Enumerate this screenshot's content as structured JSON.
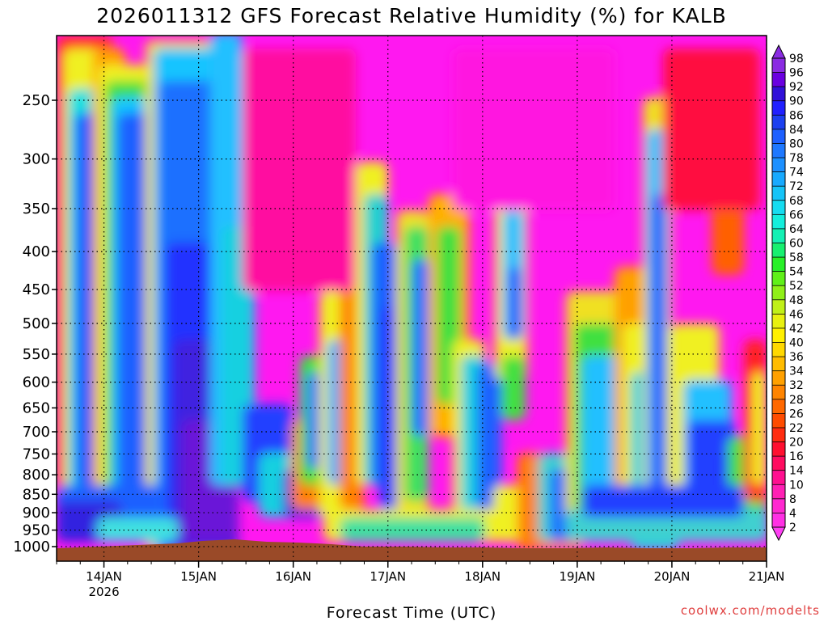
{
  "chart_data": {
    "type": "heatmap",
    "title": "2026011312 GFS Forecast Relative Humidity (%) for KALB",
    "xlabel": "Forecast Time (UTC)",
    "ylabel": "",
    "credit": "coolwx.com/modelts",
    "x_ticks": [
      {
        "label": "14JAN",
        "sub": "2026",
        "day": 14
      },
      {
        "label": "15JAN",
        "sub": "",
        "day": 15
      },
      {
        "label": "16JAN",
        "sub": "",
        "day": 16
      },
      {
        "label": "17JAN",
        "sub": "",
        "day": 17
      },
      {
        "label": "18JAN",
        "sub": "",
        "day": 18
      },
      {
        "label": "19JAN",
        "sub": "",
        "day": 19
      },
      {
        "label": "20JAN",
        "sub": "",
        "day": 20
      },
      {
        "label": "21JAN",
        "sub": "",
        "day": 21
      }
    ],
    "xlim_days": [
      13.5,
      21.0
    ],
    "y_ticks": [
      "250",
      "300",
      "350",
      "400",
      "450",
      "500",
      "550",
      "600",
      "650",
      "700",
      "750",
      "800",
      "850",
      "900",
      "950",
      "1000"
    ],
    "y_scale": "log-pressure",
    "ylim_hpa": [
      200,
      1050
    ],
    "colorbar_labels": [
      "98",
      "96",
      "92",
      "90",
      "86",
      "84",
      "80",
      "78",
      "74",
      "72",
      "68",
      "66",
      "64",
      "60",
      "58",
      "54",
      "52",
      "48",
      "46",
      "42",
      "40",
      "36",
      "34",
      "32",
      "28",
      "26",
      "22",
      "20",
      "16",
      "14",
      "10",
      "8",
      "4",
      "2"
    ],
    "colorbar_colors": [
      "#8a2be2",
      "#6a00e0",
      "#3010d8",
      "#2020ff",
      "#1c40f0",
      "#1e60ff",
      "#1e78ff",
      "#1c90ff",
      "#18aaff",
      "#16c4f8",
      "#16dcf0",
      "#14eedc",
      "#14f0b4",
      "#18f070",
      "#28f028",
      "#60f018",
      "#90f018",
      "#c0f018",
      "#e8f010",
      "#fff000",
      "#ffd800",
      "#ffbc00",
      "#ffa000",
      "#ff8400",
      "#ff6800",
      "#ff4c00",
      "#ff2c10",
      "#ff1030",
      "#ff0c60",
      "#ff1090",
      "#ff20b4",
      "#ff28d0",
      "#ff30e4",
      "#ff40f4"
    ],
    "grid": true,
    "series_note": ""
  }
}
